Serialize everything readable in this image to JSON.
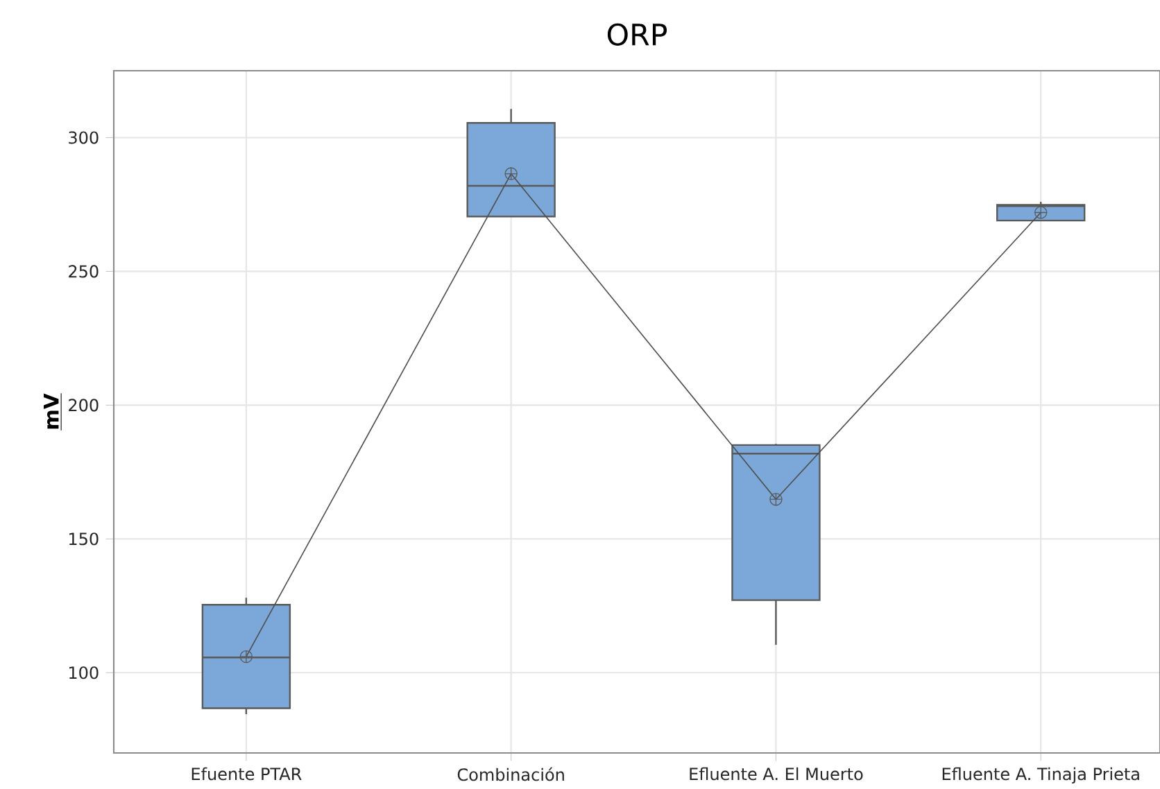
{
  "chart_data": {
    "type": "box",
    "title": "ORP",
    "ylabel": "mV",
    "categories": [
      "Efuente PTAR",
      "Combinación",
      "Efluente A. El Muerto",
      "Efluente A. Tinaja Prieta"
    ],
    "boxes": [
      {
        "low": 84.5,
        "q1": 86.7,
        "median": 105.7,
        "q3": 125.4,
        "high": 128,
        "mean": 106
      },
      {
        "low": 270.5,
        "q1": 270.5,
        "median": 282,
        "q3": 305.5,
        "high": 310.7,
        "mean": 286.5
      },
      {
        "low": 110.4,
        "q1": 127.1,
        "median": 181.9,
        "q3": 185.1,
        "high": 185.5,
        "mean": 164.8
      },
      {
        "low": 269,
        "q1": 269,
        "median": 274.4,
        "q3": 274.9,
        "high": 276,
        "mean": 272
      }
    ],
    "color": "#7ba7d9",
    "series": [
      {
        "type": "line",
        "color": "#4d4d4d",
        "values": [
          106,
          286.5,
          164.8,
          272
        ]
      }
    ],
    "ylim": [
      70,
      325
    ],
    "yticks": [
      100,
      150,
      200,
      250,
      300
    ],
    "grid": true
  }
}
